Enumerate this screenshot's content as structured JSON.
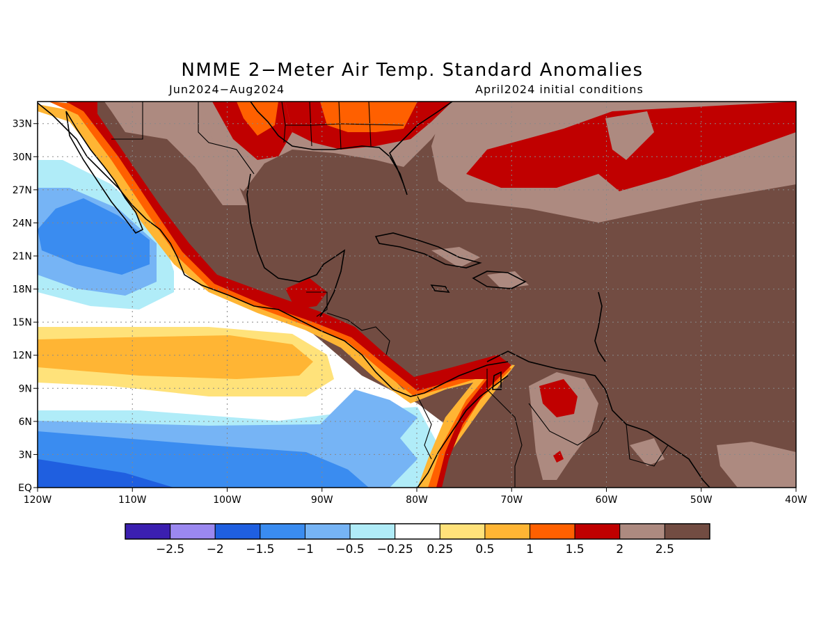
{
  "title": "NMME 2−Meter Air Temp. Standard Anomalies",
  "subtitle_left": "Jun2024−Aug2024",
  "subtitle_right": "April2024 initial conditions",
  "map": {
    "lon_range": [
      -120,
      -40
    ],
    "lat_range": [
      0,
      35
    ],
    "lat_ticks": [
      {
        "value": 33,
        "label": "33N"
      },
      {
        "value": 30,
        "label": "30N"
      },
      {
        "value": 27,
        "label": "27N"
      },
      {
        "value": 24,
        "label": "24N"
      },
      {
        "value": 21,
        "label": "21N"
      },
      {
        "value": 18,
        "label": "18N"
      },
      {
        "value": 15,
        "label": "15N"
      },
      {
        "value": 12,
        "label": "12N"
      },
      {
        "value": 9,
        "label": "9N"
      },
      {
        "value": 6,
        "label": "6N"
      },
      {
        "value": 3,
        "label": "3N"
      },
      {
        "value": 0,
        "label": "EQ"
      }
    ],
    "lon_ticks": [
      {
        "value": -120,
        "label": "120W"
      },
      {
        "value": -110,
        "label": "110W"
      },
      {
        "value": -100,
        "label": "100W"
      },
      {
        "value": -90,
        "label": "90W"
      },
      {
        "value": -80,
        "label": "80W"
      },
      {
        "value": -70,
        "label": "70W"
      },
      {
        "value": -60,
        "label": "60W"
      },
      {
        "value": -50,
        "label": "50W"
      },
      {
        "value": -40,
        "label": "40W"
      }
    ],
    "grid": "dotted"
  },
  "colorbar": {
    "colors": [
      "#3b1fb0",
      "#9b88f0",
      "#1f5fe0",
      "#3a8cf0",
      "#76b4f5",
      "#b0ecf8",
      "#ffffff",
      "#ffe27a",
      "#ffb534",
      "#ff6000",
      "#c00000",
      "#ad8a80",
      "#724c42"
    ],
    "labels": [
      "−2.5",
      "−2",
      "−1.5",
      "−1",
      "−0.5",
      "−0.25",
      "0.25",
      "0.5",
      "1",
      "1.5",
      "2",
      "2.5"
    ]
  }
}
